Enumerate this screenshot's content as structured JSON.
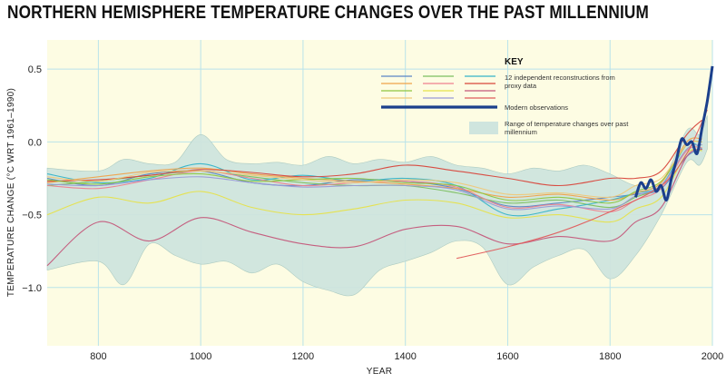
{
  "chart_data": {
    "type": "line",
    "title": "NORTHERN HEMISPHERE TEMPERATURE CHANGES OVER THE PAST MILLENNIUM",
    "xlabel": "YEAR",
    "ylabel": "TEMPERATURE CHANGE (°C WRT 1961–1990)",
    "xlim": [
      700,
      2000
    ],
    "ylim": [
      -1.4,
      0.7
    ],
    "x_ticks": [
      800,
      1000,
      1200,
      1400,
      1600,
      1800,
      2000
    ],
    "y_ticks": [
      0.5,
      0.0,
      -0.5,
      -1.0
    ],
    "y_tick_labels": [
      "0.5",
      "0.0",
      "−0.5",
      "−1.0"
    ],
    "grid": true,
    "background": "#fdfce3",
    "legend": {
      "title": "KEY",
      "placement": "top-right",
      "entries": [
        "12 independent reconstructions from proxy data",
        "Modern observations",
        "Range of temperature changes over past millennium"
      ]
    },
    "range_band": {
      "name": "Range of temperature changes over past millennium",
      "color": "#cfe5de",
      "x": [
        700,
        800,
        850,
        900,
        950,
        1000,
        1050,
        1100,
        1150,
        1200,
        1250,
        1300,
        1350,
        1400,
        1450,
        1500,
        1550,
        1600,
        1650,
        1700,
        1750,
        1800,
        1850,
        1900,
        1950,
        1975,
        1990
      ],
      "upper": [
        -0.18,
        -0.2,
        -0.12,
        -0.15,
        -0.14,
        0.05,
        -0.12,
        -0.15,
        -0.14,
        -0.16,
        -0.1,
        -0.15,
        -0.12,
        -0.14,
        -0.1,
        -0.16,
        -0.18,
        -0.22,
        -0.18,
        -0.2,
        -0.16,
        -0.22,
        -0.3,
        -0.28,
        0.08,
        0.05,
        0.18
      ],
      "lower": [
        -0.88,
        -0.82,
        -0.98,
        -0.7,
        -0.78,
        -0.84,
        -0.82,
        -0.9,
        -0.84,
        -0.96,
        -1.02,
        -1.05,
        -0.88,
        -0.82,
        -0.76,
        -0.68,
        -0.72,
        -0.98,
        -0.86,
        -0.78,
        -0.74,
        -0.94,
        -0.78,
        -0.5,
        -0.14,
        -0.16,
        -0.05
      ]
    },
    "series": [
      {
        "color": "#5b86c4",
        "x": [
          700,
          800,
          900,
          1000,
          1100,
          1200,
          1300,
          1400,
          1500,
          1600,
          1700,
          1800,
          1850,
          1900,
          1950,
          1980
        ],
        "y": [
          -0.25,
          -0.3,
          -0.22,
          -0.2,
          -0.28,
          -0.3,
          -0.26,
          -0.27,
          -0.32,
          -0.44,
          -0.42,
          -0.38,
          -0.36,
          -0.32,
          -0.1,
          -0.05
        ]
      },
      {
        "color": "#7cbf5f",
        "x": [
          700,
          800,
          900,
          1000,
          1100,
          1200,
          1300,
          1400,
          1500,
          1600,
          1700,
          1800,
          1850,
          1900,
          1950,
          1980
        ],
        "y": [
          -0.3,
          -0.27,
          -0.23,
          -0.2,
          -0.24,
          -0.28,
          -0.3,
          -0.3,
          -0.35,
          -0.42,
          -0.4,
          -0.45,
          -0.38,
          -0.3,
          -0.05,
          -0.02
        ]
      },
      {
        "color": "#35b3c8",
        "x": [
          700,
          800,
          900,
          1000,
          1100,
          1200,
          1300,
          1400,
          1500,
          1600,
          1700,
          1800,
          1850,
          1900,
          1950,
          1980
        ],
        "y": [
          -0.22,
          -0.28,
          -0.25,
          -0.15,
          -0.26,
          -0.23,
          -0.27,
          -0.25,
          -0.3,
          -0.5,
          -0.46,
          -0.4,
          -0.35,
          -0.3,
          -0.02,
          -0.05
        ]
      },
      {
        "color": "#f0a24a",
        "x": [
          700,
          800,
          900,
          1000,
          1100,
          1200,
          1300,
          1400,
          1500,
          1600,
          1700,
          1800,
          1850,
          1900,
          1950,
          1980
        ],
        "y": [
          -0.28,
          -0.24,
          -0.2,
          -0.18,
          -0.22,
          -0.25,
          -0.27,
          -0.29,
          -0.32,
          -0.38,
          -0.36,
          -0.4,
          -0.35,
          -0.28,
          0.0,
          0.02
        ]
      },
      {
        "color": "#ee7f8e",
        "x": [
          700,
          800,
          900,
          1000,
          1100,
          1200,
          1300,
          1400,
          1500,
          1600,
          1700,
          1800,
          1850,
          1900,
          1950,
          1980
        ],
        "y": [
          -0.3,
          -0.32,
          -0.26,
          -0.2,
          -0.25,
          -0.3,
          -0.28,
          -0.27,
          -0.31,
          -0.45,
          -0.43,
          -0.48,
          -0.4,
          -0.32,
          -0.06,
          -0.04
        ]
      },
      {
        "color": "#d8453a",
        "x": [
          700,
          800,
          900,
          1000,
          1100,
          1200,
          1300,
          1400,
          1500,
          1600,
          1700,
          1800,
          1850,
          1900,
          1950,
          1980
        ],
        "y": [
          -0.27,
          -0.26,
          -0.23,
          -0.19,
          -0.21,
          -0.24,
          -0.22,
          -0.16,
          -0.2,
          -0.25,
          -0.3,
          -0.25,
          -0.25,
          -0.2,
          0.05,
          0.15
        ]
      },
      {
        "color": "#8ec63f",
        "x": [
          700,
          800,
          900,
          1000,
          1100,
          1200,
          1300,
          1400,
          1500,
          1600,
          1700,
          1800,
          1850,
          1900,
          1950,
          1980
        ],
        "y": [
          -0.26,
          -0.29,
          -0.24,
          -0.22,
          -0.27,
          -0.26,
          -0.25,
          -0.28,
          -0.3,
          -0.4,
          -0.38,
          -0.42,
          -0.34,
          -0.27,
          -0.02,
          0.0
        ]
      },
      {
        "color": "#e6e24a",
        "x": [
          700,
          800,
          900,
          1000,
          1100,
          1200,
          1300,
          1400,
          1500,
          1600,
          1700,
          1800,
          1850,
          1900,
          1950,
          1980
        ],
        "y": [
          -0.5,
          -0.38,
          -0.42,
          -0.34,
          -0.45,
          -0.5,
          -0.46,
          -0.4,
          -0.42,
          -0.52,
          -0.5,
          -0.55,
          -0.46,
          -0.38,
          -0.08,
          -0.06
        ]
      },
      {
        "color": "#c4577a",
        "x": [
          700,
          800,
          900,
          1000,
          1100,
          1200,
          1300,
          1400,
          1500,
          1600,
          1700,
          1800,
          1850,
          1900,
          1950,
          1980
        ],
        "y": [
          -0.85,
          -0.55,
          -0.68,
          -0.52,
          -0.62,
          -0.7,
          -0.72,
          -0.6,
          -0.58,
          -0.7,
          -0.65,
          -0.68,
          -0.55,
          -0.45,
          -0.1,
          -0.05
        ]
      },
      {
        "color": "#f0c878",
        "x": [
          700,
          800,
          900,
          1000,
          1100,
          1200,
          1300,
          1400,
          1500,
          1600,
          1700,
          1800,
          1850,
          1900,
          1950,
          1980
        ],
        "y": [
          -0.24,
          -0.27,
          -0.21,
          -0.2,
          -0.23,
          -0.26,
          -0.28,
          -0.26,
          -0.28,
          -0.36,
          -0.35,
          -0.38,
          -0.3,
          -0.25,
          -0.02,
          0.0
        ]
      },
      {
        "color": "#9a9ad6",
        "x": [
          700,
          800,
          900,
          1000,
          1100,
          1200,
          1300,
          1400,
          1500,
          1600,
          1700,
          1800,
          1850,
          1900,
          1950,
          1980
        ],
        "y": [
          -0.29,
          -0.3,
          -0.26,
          -0.24,
          -0.28,
          -0.31,
          -0.3,
          -0.3,
          -0.33,
          -0.46,
          -0.44,
          -0.46,
          -0.37,
          -0.3,
          -0.05,
          -0.02
        ]
      },
      {
        "color": "#e05c5c",
        "x": [
          1500,
          1600,
          1700,
          1800,
          1900,
          1950,
          1990
        ],
        "y": [
          -0.8,
          -0.72,
          -0.62,
          -0.48,
          -0.3,
          -0.08,
          0.22
        ]
      }
    ],
    "observations": {
      "name": "Modern observations",
      "color": "#1b3f8c",
      "x": [
        1850,
        1860,
        1870,
        1880,
        1890,
        1900,
        1910,
        1920,
        1930,
        1940,
        1950,
        1960,
        1970,
        1980,
        1990,
        2000
      ],
      "y": [
        -0.38,
        -0.28,
        -0.32,
        -0.26,
        -0.34,
        -0.3,
        -0.4,
        -0.25,
        -0.12,
        0.02,
        -0.02,
        0.0,
        -0.08,
        0.1,
        0.28,
        0.52
      ]
    }
  }
}
